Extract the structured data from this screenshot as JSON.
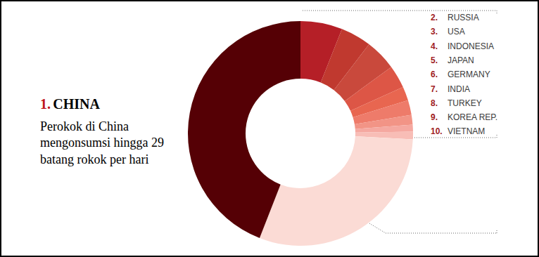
{
  "chart_data": {
    "type": "pie",
    "categories": [
      "RUSSIA",
      "USA",
      "INDONESIA",
      "JAPAN",
      "GERMANY",
      "INDIA",
      "TURKEY",
      "KOREA REP.",
      "VIETNAM",
      null,
      "CHINA"
    ],
    "ranks": [
      "2.",
      "3.",
      "4.",
      "5.",
      "6.",
      "7.",
      "8.",
      "9.",
      "10.",
      null,
      "1."
    ],
    "values": [
      6,
      4.4,
      4.5,
      3.3,
      2,
      2.1,
      1.4,
      1,
      1.1,
      30,
      44
    ],
    "colors": [
      "#b51f27",
      "#c0392f",
      "#c9493c",
      "#dd5646",
      "#e86650",
      "#ee7b6a",
      "#f29486",
      "#f5a8a0",
      "#f8bdb6",
      "#fbdbd5",
      "#550005"
    ],
    "annotations": [
      {
        "category": "CHINA",
        "text": "Perokok di China mengonsumsi hingga 29 batang rokok per hari"
      }
    ]
  }
}
